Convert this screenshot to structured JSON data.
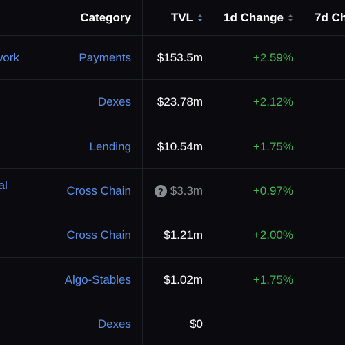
{
  "header": {
    "category": "Category",
    "tvl": "TVL",
    "change_1d": "1d Change",
    "change_7d": "7d Ch"
  },
  "rows": [
    {
      "name": "work",
      "category": "Payments",
      "tvl": "$153.5m",
      "change_1d": "+2.59%"
    },
    {
      "name": "",
      "category": "Dexes",
      "tvl": "$23.78m",
      "change_1d": "+2.12%"
    },
    {
      "name": "",
      "category": "Lending",
      "tvl": "$10.54m",
      "change_1d": "+1.75%"
    },
    {
      "name": "ral",
      "category": "Cross Chain",
      "tvl": "$3.3m",
      "tvl_icon": "question-icon",
      "change_1d": "+0.97%"
    },
    {
      "name": "",
      "category": "Cross Chain",
      "tvl": "$1.21m",
      "change_1d": "+2.00%"
    },
    {
      "name": "",
      "category": "Algo-Stables",
      "tvl": "$1.02m",
      "change_1d": "+1.75%"
    },
    {
      "name": "",
      "category": "Dexes",
      "tvl": "$0",
      "change_1d": ""
    }
  ],
  "colors": {
    "background": "#0b0b0f",
    "link": "#5a8fe6",
    "positive": "#3fb950",
    "muted": "#8a8d96",
    "divider": "#1f2128"
  }
}
